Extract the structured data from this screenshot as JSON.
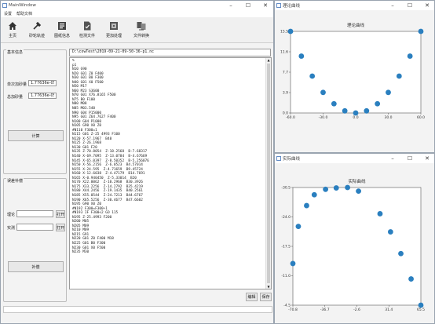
{
  "main_window": {
    "title": "MainWindow",
    "menu": [
      "设置",
      "帮助文档"
    ],
    "toolbar": [
      {
        "label": "主页",
        "icon": "home-icon"
      },
      {
        "label": "砂轮轨迹",
        "icon": "tool-icon"
      },
      {
        "label": "图纸信息",
        "icon": "info-icon"
      },
      {
        "label": "检测文件",
        "icon": "check-file-icon"
      },
      {
        "label": "更加处理",
        "icon": "process-icon"
      },
      {
        "label": "文件转换",
        "icon": "convert-icon"
      }
    ],
    "basic_info": {
      "title": "基本信息",
      "single_label": "单次加砂量",
      "single_value": "1.77636e-05",
      "total_label": "总加砂量",
      "total_value": "1.77636e-05",
      "calc_button": "计算"
    },
    "correction": {
      "title": "误差补偿",
      "theory_label": "理论",
      "actual_label": "实测",
      "open_button_1": "打开",
      "open_button_2": "打开",
      "compensate_button": "补偿"
    },
    "file_path": "D:\\cowTest\\2019-09-21-09-50-36-p1.nc",
    "code_lines": [
      "%",
      "p1",
      "N10 G90",
      "N20 G01 Z0 F400",
      "N30 G01 B0 F300",
      "N40 G01 X0 F500",
      "N50 M17",
      "N60 M23 S3600",
      "N70 G01 X76.8165 F500",
      "N75 B0 F100",
      "N80 M08",
      "N85 M03.540",
      "N90 G04 P15000",
      "N95 G01 Z64.7627 F400",
      "N100 G04 P1000",
      "N105 G90 X0 Z0",
      "#N110 F300=1",
      "N115 G01 Z-25 4993 F100",
      "N120 X-57.1967  B40",
      "N125 Z-26.1968",
      "N130 G01 F20",
      "N135 Z-70.8054  Z-18.2568  B-7.68317",
      "N140 X-69.7095  Z-13.0784  B-4.67669",
      "N145 X-65.0397  Z-8.50352  B-5.256076",
      "N150 X-56.2156  Z-6.0523  B4.57014",
      "N155 X-24.595  Z-4.71659  B9.45724",
      "N160 X-12.6038  Z-4.47179  B14.7691",
      "N165 X-0.940450  Z-5.33014  B20",
      "N170 X22.0062  Z-10.2968  B30.3926",
      "N175 X33.2256  Z-14.2792  B35.4219",
      "N180 X44.2456  Z-19.1435  B40.2561",
      "N185 X55.0544  Z-24.7213  B44.6767",
      "N190 X65.5256  Z-30.4677  B47.6602",
      "N195 G90 X0 Z0",
      "#N192 F300=F300+1",
      "#N193 IF F300<2 GO 115",
      "N195 Z-25.4993 F200",
      "N200 M05",
      "N205 M09",
      "N210 M09",
      "N215 G91",
      "N220 G01 Z0 F400 M18",
      "N225 G01 B0 F300",
      "N230 G01 X0 F500",
      "N235 M30"
    ],
    "edit_button": "编辑",
    "save_button": "保存"
  },
  "theory_window": {
    "window_title": "理论曲线",
    "chart_data": {
      "type": "scatter",
      "title": "理论曲线",
      "xlim": [
        -60.0,
        60.0
      ],
      "ylim": [
        0.0,
        15.5
      ],
      "xticks": [
        "-60.0",
        "-30.0",
        "0.0",
        "30.0",
        "60.0"
      ],
      "yticks": [
        "0.0",
        "3.9",
        "7.7",
        "11.6",
        "15.5"
      ],
      "x": [
        -60,
        -50,
        -40,
        -30,
        -20,
        -10,
        0,
        10,
        20,
        30,
        40,
        50,
        60
      ],
      "y": [
        15.5,
        10.8,
        7.0,
        3.9,
        1.75,
        0.4,
        0.0,
        0.4,
        1.75,
        3.9,
        7.0,
        10.8,
        15.5
      ],
      "color": "#2a7fbf"
    }
  },
  "actual_window": {
    "window_title": "实际曲线",
    "chart_data": {
      "type": "scatter",
      "title": "实际曲线",
      "xlim": [
        -70.8,
        65.5
      ],
      "ylim": [
        -30.5,
        -4.5
      ],
      "xticks": [
        "-70.8",
        "-36.7",
        "-2.6",
        "31.4",
        "65.5"
      ],
      "yticks": [
        "-4.5",
        "-11.0",
        "-17.5",
        "-24.0",
        "-30.5"
      ],
      "x": [
        -70.8,
        -65.0,
        -56.2,
        -48.0,
        -36.0,
        -24.6,
        -12.6,
        -0.9,
        22.0,
        33.2,
        44.2,
        55.1,
        65.5
      ],
      "y": [
        -21.3,
        -13.1,
        -8.5,
        -6.1,
        -4.9,
        -4.6,
        -4.5,
        -5.3,
        -10.3,
        -14.3,
        -19.1,
        -24.7,
        -30.5
      ],
      "color": "#2a7fbf"
    }
  }
}
